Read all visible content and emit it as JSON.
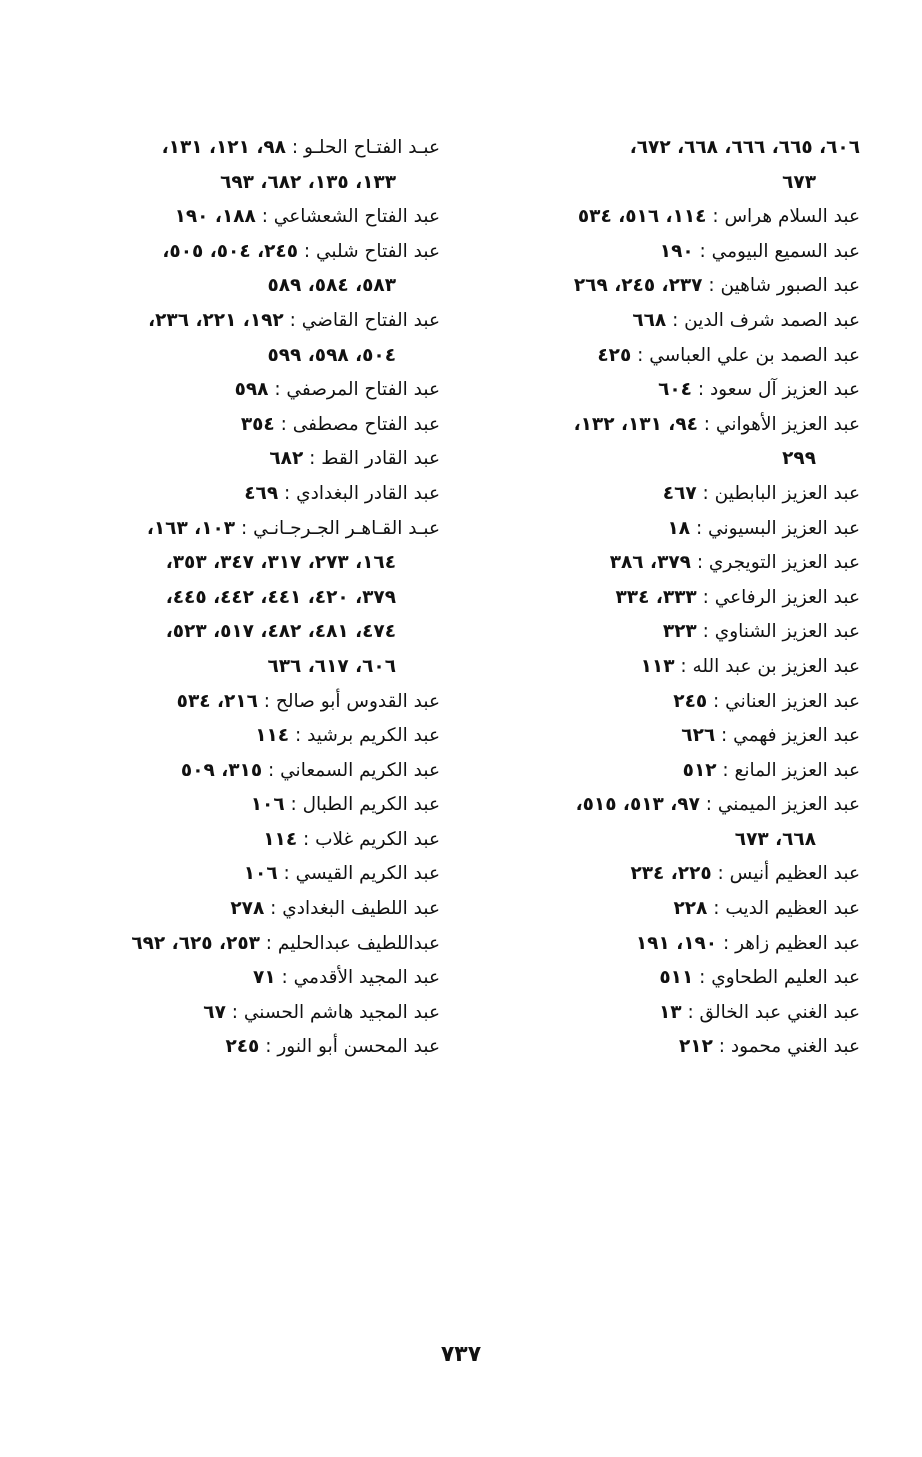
{
  "right_column": [
    {
      "name": "",
      "pages": "٦٠٦، ٦٦٥، ٦٦٦، ٦٦٨، ٦٧٢،",
      "cont": false
    },
    {
      "name": "",
      "pages": "٦٧٣",
      "cont": true
    },
    {
      "name": "عبد السلام هراس : ",
      "pages": "١١٤، ٥١٦، ٥٣٤",
      "cont": false
    },
    {
      "name": "عبد السميع البيومي : ",
      "pages": "١٩٠",
      "cont": false
    },
    {
      "name": "عبد الصبور شاهين : ",
      "pages": "٢٣٧، ٢٤٥، ٢٦٩",
      "cont": false
    },
    {
      "name": "عبد الصمد شرف الدين : ",
      "pages": "٦٦٨",
      "cont": false
    },
    {
      "name": "عبد الصمد بن علي العباسي : ",
      "pages": "٤٢٥",
      "cont": false
    },
    {
      "name": "عبد العزيز آل سعود : ",
      "pages": "٦٠٤",
      "cont": false
    },
    {
      "name": "عبد العزيز الأهواني : ",
      "pages": "٩٤، ١٣١، ١٣٢،",
      "cont": false
    },
    {
      "name": "",
      "pages": "٢٩٩",
      "cont": true
    },
    {
      "name": "عبد العزيز البابطين : ",
      "pages": "٤٦٧",
      "cont": false
    },
    {
      "name": "عبد العزيز البسيوني : ",
      "pages": "١٨",
      "cont": false
    },
    {
      "name": "عبد العزيز التويجري : ",
      "pages": "٣٧٩، ٣٨٦",
      "cont": false
    },
    {
      "name": "عبد العزيز الرفاعي : ",
      "pages": "٣٣٣، ٣٣٤",
      "cont": false
    },
    {
      "name": "عبد العزيز الشناوي : ",
      "pages": "٣٢٣",
      "cont": false
    },
    {
      "name": "عبد العزيز بن عبد الله : ",
      "pages": "١١٣",
      "cont": false
    },
    {
      "name": "عبد العزيز العناني : ",
      "pages": "٢٤٥",
      "cont": false
    },
    {
      "name": "عبد العزيز فهمي : ",
      "pages": "٦٢٦",
      "cont": false
    },
    {
      "name": "عبد العزيز المانع : ",
      "pages": "٥١٢",
      "cont": false
    },
    {
      "name": "عبد العزيز الميمني : ",
      "pages": "٩٧، ٥١٣، ٥١٥،",
      "cont": false
    },
    {
      "name": "",
      "pages": "٦٦٨، ٦٧٣",
      "cont": true
    },
    {
      "name": "عبد العظيم أنيس : ",
      "pages": "٢٢٥، ٢٣٤",
      "cont": false
    },
    {
      "name": "عبد العظيم الديب : ",
      "pages": "٢٢٨",
      "cont": false
    },
    {
      "name": "عبد العظيم زاهر : ",
      "pages": "١٩٠، ١٩١",
      "cont": false
    },
    {
      "name": "عبد العليم الطحاوي : ",
      "pages": "٥١١",
      "cont": false
    },
    {
      "name": "عبد الغني عبد الخالق : ",
      "pages": "١٣",
      "cont": false
    },
    {
      "name": "عبد الغني محمود : ",
      "pages": "٢١٢",
      "cont": false
    }
  ],
  "left_column": [
    {
      "name": "عبـد الفتـاح الحلـو : ",
      "pages": "٩٨، ١٢١، ١٣١،",
      "cont": false
    },
    {
      "name": "",
      "pages": "١٣٣، ١٣٥، ٦٨٢، ٦٩٣",
      "cont": true
    },
    {
      "name": "عبد الفتاح الشعشاعي : ",
      "pages": "١٨٨، ١٩٠",
      "cont": false
    },
    {
      "name": "عبد الفتاح شلبي : ",
      "pages": "٢٤٥، ٥٠٤، ٥٠٥،",
      "cont": false
    },
    {
      "name": "",
      "pages": "٥٨٣، ٥٨٤، ٥٨٩",
      "cont": true
    },
    {
      "name": "عبد الفتاح القاضي : ",
      "pages": "١٩٢، ٢٢١، ٢٣٦،",
      "cont": false
    },
    {
      "name": "",
      "pages": "٥٠٤، ٥٩٨، ٥٩٩",
      "cont": true
    },
    {
      "name": "عبد الفتاح المرصفي : ",
      "pages": "٥٩٨",
      "cont": false
    },
    {
      "name": "عبد الفتاح مصطفى : ",
      "pages": "٣٥٤",
      "cont": false
    },
    {
      "name": "عبد القادر القط : ",
      "pages": "٦٨٢",
      "cont": false
    },
    {
      "name": "عبد القادر البغدادي : ",
      "pages": "٤٦٩",
      "cont": false
    },
    {
      "name": "عبـد القـاهـر الجـرجـانـي : ",
      "pages": "١٠٣، ١٦٣،",
      "cont": false
    },
    {
      "name": "",
      "pages": "١٦٤، ٢٧٣، ٣١٧، ٣٤٧، ٣٥٣،",
      "cont": true
    },
    {
      "name": "",
      "pages": "٣٧٩، ٤٢٠، ٤٤١، ٤٤٢، ٤٤٥،",
      "cont": true
    },
    {
      "name": "",
      "pages": "٤٧٤، ٤٨١، ٤٨٢، ٥١٧، ٥٢٣،",
      "cont": true
    },
    {
      "name": "",
      "pages": "٦٠٦، ٦١٧، ٦٣٦",
      "cont": true
    },
    {
      "name": "عبد القدوس أبو صالح : ",
      "pages": "٢١٦، ٥٣٤",
      "cont": false
    },
    {
      "name": "عبد الكريم برشيد : ",
      "pages": "١١٤",
      "cont": false
    },
    {
      "name": "عبد الكريم السمعاني : ",
      "pages": "٣١٥، ٥٠٩",
      "cont": false
    },
    {
      "name": "عبد الكريم الطبال : ",
      "pages": "١٠٦",
      "cont": false
    },
    {
      "name": "عبد الكريم غلاب : ",
      "pages": "١١٤",
      "cont": false
    },
    {
      "name": "عبد الكريم القيسي : ",
      "pages": "١٠٦",
      "cont": false
    },
    {
      "name": "عبد اللطيف البغدادي : ",
      "pages": "٢٧٨",
      "cont": false
    },
    {
      "name": "عبداللطيف عبدالحليم : ",
      "pages": "٢٥٣، ٦٢٥، ٦٩٢",
      "cont": false
    },
    {
      "name": "عبد المجيد الأقدمي : ",
      "pages": "٧١",
      "cont": false
    },
    {
      "name": "عبد المجيد هاشم الحسني : ",
      "pages": "٦٧",
      "cont": false
    },
    {
      "name": "عبد المحسن أبو النور : ",
      "pages": "٢٤٥",
      "cont": false
    }
  ],
  "page_number": "٧٣٧"
}
